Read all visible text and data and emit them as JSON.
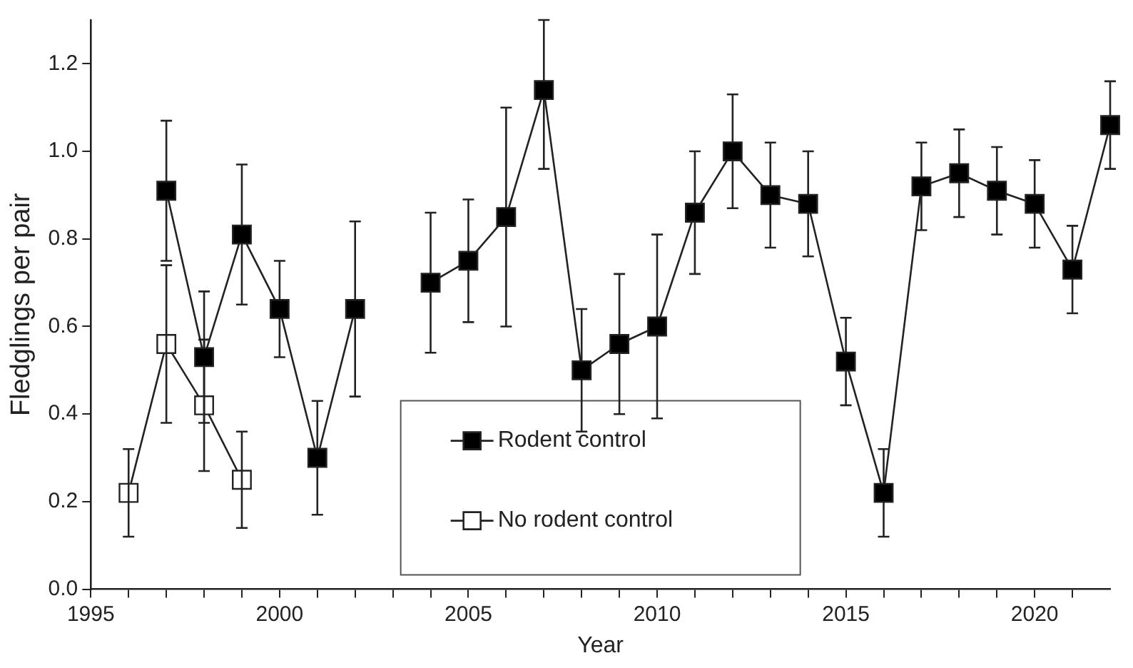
{
  "chart_data": {
    "type": "line",
    "xlabel": "Year",
    "ylabel": "Fledglings per pair",
    "xlim": [
      1995,
      2022
    ],
    "ylim": [
      0,
      1.3
    ],
    "xticks": [
      1995,
      {
        "value": 1996,
        "label": null
      },
      {
        "value": 1997,
        "label": null
      },
      {
        "value": 1998,
        "label": null
      },
      {
        "value": 1999,
        "label": null
      },
      2000,
      {
        "value": 2001,
        "label": null
      },
      {
        "value": 2002,
        "label": null
      },
      {
        "value": 2003,
        "label": null
      },
      {
        "value": 2004,
        "label": null
      },
      2005,
      {
        "value": 2006,
        "label": null
      },
      {
        "value": 2007,
        "label": null
      },
      {
        "value": 2008,
        "label": null
      },
      {
        "value": 2009,
        "label": null
      },
      2010,
      {
        "value": 2011,
        "label": null
      },
      {
        "value": 2012,
        "label": null
      },
      {
        "value": 2013,
        "label": null
      },
      {
        "value": 2014,
        "label": null
      },
      2015,
      {
        "value": 2016,
        "label": null
      },
      {
        "value": 2017,
        "label": null
      },
      {
        "value": 2018,
        "label": null
      },
      {
        "value": 2019,
        "label": null
      },
      2020,
      {
        "value": 2021,
        "label": null
      }
    ],
    "yticks": [
      {
        "value": 0,
        "label": "0.0"
      },
      0.2,
      0.4,
      0.6,
      0.8,
      {
        "value": 1,
        "label": "1.0"
      },
      1.2
    ],
    "grid": false,
    "legend": "bottom",
    "marker": "square",
    "line_style": "solid",
    "series": [
      {
        "name": "Rodent control",
        "color": "#000000",
        "x": [
          1997,
          1998,
          1999,
          2000,
          2001,
          2002,
          2003,
          2004,
          2005,
          2006,
          2007,
          2008,
          2009,
          2010,
          2011,
          2012,
          2013,
          2014,
          2015,
          2016,
          2017,
          2018,
          2019,
          2020,
          2021,
          2022
        ],
        "values": [
          0.91,
          0.53,
          0.81,
          0.64,
          0.3,
          0.64,
          null,
          0.7,
          0.75,
          0.85,
          1.14,
          0.5,
          0.56,
          0.6,
          0.86,
          1.0,
          0.9,
          0.88,
          0.52,
          0.22,
          0.92,
          0.95,
          0.91,
          0.88,
          0.73,
          1.06
        ],
        "errors": [
          [
            0.75,
            1.07
          ],
          [
            0.38,
            0.68
          ],
          [
            0.65,
            0.97
          ],
          [
            0.53,
            0.75
          ],
          [
            0.17,
            0.43
          ],
          [
            0.44,
            0.84
          ],
          null,
          [
            0.54,
            0.86
          ],
          [
            0.61,
            0.89
          ],
          [
            0.6,
            1.1
          ],
          [
            0.96,
            1.3
          ],
          [
            0.36,
            0.64
          ],
          [
            0.4,
            0.72
          ],
          [
            0.39,
            0.81
          ],
          [
            0.72,
            1.0
          ],
          [
            0.87,
            1.13
          ],
          [
            0.78,
            1.02
          ],
          [
            0.76,
            1.0
          ],
          [
            0.42,
            0.62
          ],
          [
            0.12,
            0.32
          ],
          [
            0.82,
            1.02
          ],
          [
            0.85,
            1.05
          ],
          [
            0.81,
            1.01
          ],
          [
            0.78,
            0.98
          ],
          [
            0.63,
            0.83
          ],
          [
            0.96,
            1.16
          ]
        ]
      },
      {
        "name": "No rodent control",
        "color": "#ffffff",
        "x": [
          1996,
          1997,
          1998,
          1999
        ],
        "values": [
          0.22,
          0.56,
          0.42,
          0.25
        ],
        "errors": [
          [
            0.12,
            0.32
          ],
          [
            0.38,
            0.74
          ],
          [
            0.27,
            0.57
          ],
          [
            0.14,
            0.36
          ]
        ]
      }
    ]
  }
}
